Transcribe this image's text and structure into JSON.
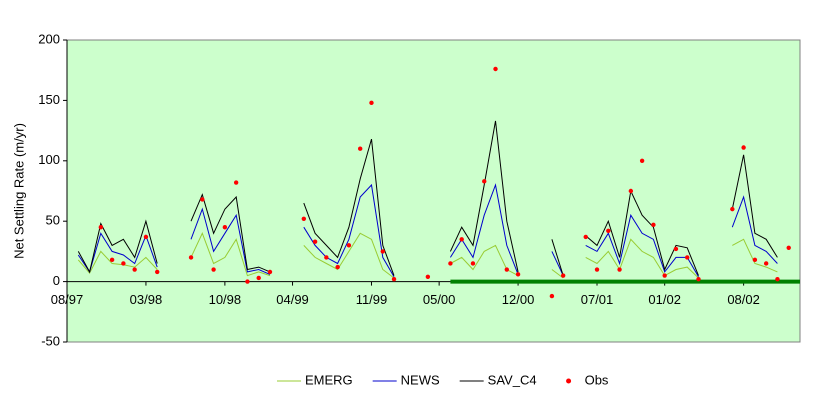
{
  "chart_data": {
    "type": "line",
    "ylabel": "Net Settling Rate (m/yr)",
    "x": [
      "1997-08",
      "1997-09",
      "1997-10",
      "1997-11",
      "1997-12",
      "1998-01",
      "1998-02",
      "1998-03",
      "1998-04",
      "1998-05",
      "1998-06",
      "1998-07",
      "1998-08",
      "1998-09",
      "1998-10",
      "1998-11",
      "1998-12",
      "1999-01",
      "1999-02",
      "1999-03",
      "1999-04",
      "1999-05",
      "1999-06",
      "1999-07",
      "1999-08",
      "1999-09",
      "1999-10",
      "1999-11",
      "1999-12",
      "2000-01",
      "2000-02",
      "2000-03",
      "2000-04",
      "2000-05",
      "2000-06",
      "2000-07",
      "2000-08",
      "2000-09",
      "2000-10",
      "2000-11",
      "2000-12",
      "2001-01",
      "2001-02",
      "2001-03",
      "2001-04",
      "2001-05",
      "2001-06",
      "2001-07",
      "2001-08",
      "2001-09",
      "2001-10",
      "2001-11",
      "2001-12",
      "2002-01",
      "2002-02",
      "2002-03",
      "2002-04",
      "2002-05",
      "2002-06",
      "2002-07",
      "2002-08",
      "2002-09",
      "2002-10",
      "2002-11",
      "2002-12"
    ],
    "xlim": [
      "1997-08",
      "2003-01"
    ],
    "xticks": [
      {
        "value": "1997-08",
        "label": "08/97"
      },
      {
        "value": "1998-03",
        "label": "03/98"
      },
      {
        "value": "1998-10",
        "label": "10/98"
      },
      {
        "value": "1999-04",
        "label": "04/99"
      },
      {
        "value": "1999-11",
        "label": "11/99"
      },
      {
        "value": "2000-05",
        "label": "05/00"
      },
      {
        "value": "2000-12",
        "label": "12/00"
      },
      {
        "value": "2001-07",
        "label": "07/01"
      },
      {
        "value": "2002-01",
        "label": "01/02"
      },
      {
        "value": "2002-08",
        "label": "08/02"
      }
    ],
    "ylim": [
      -50,
      200
    ],
    "yticks": [
      -50,
      0,
      50,
      100,
      150,
      200
    ],
    "grid": false,
    "legend": "bottom",
    "reference_line": {
      "value": 0,
      "from": "2000-06",
      "color": "#008000"
    },
    "series": [
      {
        "name": "EMERG",
        "color": "#99cc33",
        "mode": "lines",
        "values": [
          null,
          18,
          7,
          25,
          15,
          14,
          12,
          20,
          10,
          null,
          null,
          20,
          40,
          15,
          20,
          35,
          5,
          8,
          5,
          null,
          null,
          30,
          20,
          15,
          10,
          25,
          40,
          35,
          10,
          3,
          null,
          null,
          null,
          null,
          15,
          20,
          10,
          25,
          30,
          10,
          5,
          null,
          null,
          10,
          3,
          null,
          20,
          15,
          25,
          10,
          35,
          25,
          20,
          5,
          10,
          12,
          3,
          null,
          null,
          30,
          35,
          15,
          12,
          8,
          null
        ]
      },
      {
        "name": "NEWS",
        "color": "#0000cc",
        "mode": "lines",
        "values": [
          null,
          22,
          8,
          40,
          25,
          22,
          15,
          38,
          12,
          null,
          null,
          35,
          60,
          25,
          40,
          55,
          8,
          10,
          6,
          null,
          null,
          45,
          30,
          20,
          15,
          35,
          70,
          80,
          20,
          4,
          null,
          null,
          null,
          null,
          20,
          35,
          20,
          55,
          80,
          30,
          6,
          null,
          null,
          25,
          5,
          null,
          30,
          25,
          40,
          15,
          55,
          40,
          35,
          8,
          20,
          20,
          4,
          null,
          null,
          45,
          70,
          30,
          25,
          15,
          null
        ]
      },
      {
        "name": "SAV_C4",
        "color": "#000000",
        "mode": "lines",
        "values": [
          null,
          25,
          8,
          48,
          30,
          35,
          20,
          50,
          15,
          null,
          null,
          50,
          72,
          40,
          60,
          70,
          10,
          12,
          8,
          null,
          null,
          65,
          40,
          30,
          20,
          45,
          85,
          118,
          30,
          5,
          null,
          null,
          null,
          null,
          25,
          45,
          30,
          80,
          133,
          50,
          8,
          null,
          null,
          35,
          5,
          null,
          38,
          30,
          50,
          20,
          75,
          55,
          45,
          10,
          30,
          28,
          5,
          null,
          null,
          60,
          105,
          40,
          35,
          20,
          null
        ]
      },
      {
        "name": "Obs",
        "color": "#ff0000",
        "mode": "markers",
        "values": [
          null,
          null,
          null,
          45,
          18,
          15,
          10,
          37,
          8,
          null,
          null,
          20,
          68,
          10,
          45,
          82,
          0,
          3,
          8,
          null,
          null,
          52,
          33,
          20,
          12,
          30,
          110,
          148,
          25,
          2,
          null,
          null,
          4,
          null,
          15,
          35,
          15,
          83,
          176,
          10,
          6,
          null,
          null,
          -12,
          5,
          null,
          37,
          10,
          42,
          10,
          75,
          100,
          47,
          5,
          27,
          20,
          2,
          null,
          null,
          60,
          111,
          18,
          15,
          2,
          28
        ]
      }
    ]
  }
}
